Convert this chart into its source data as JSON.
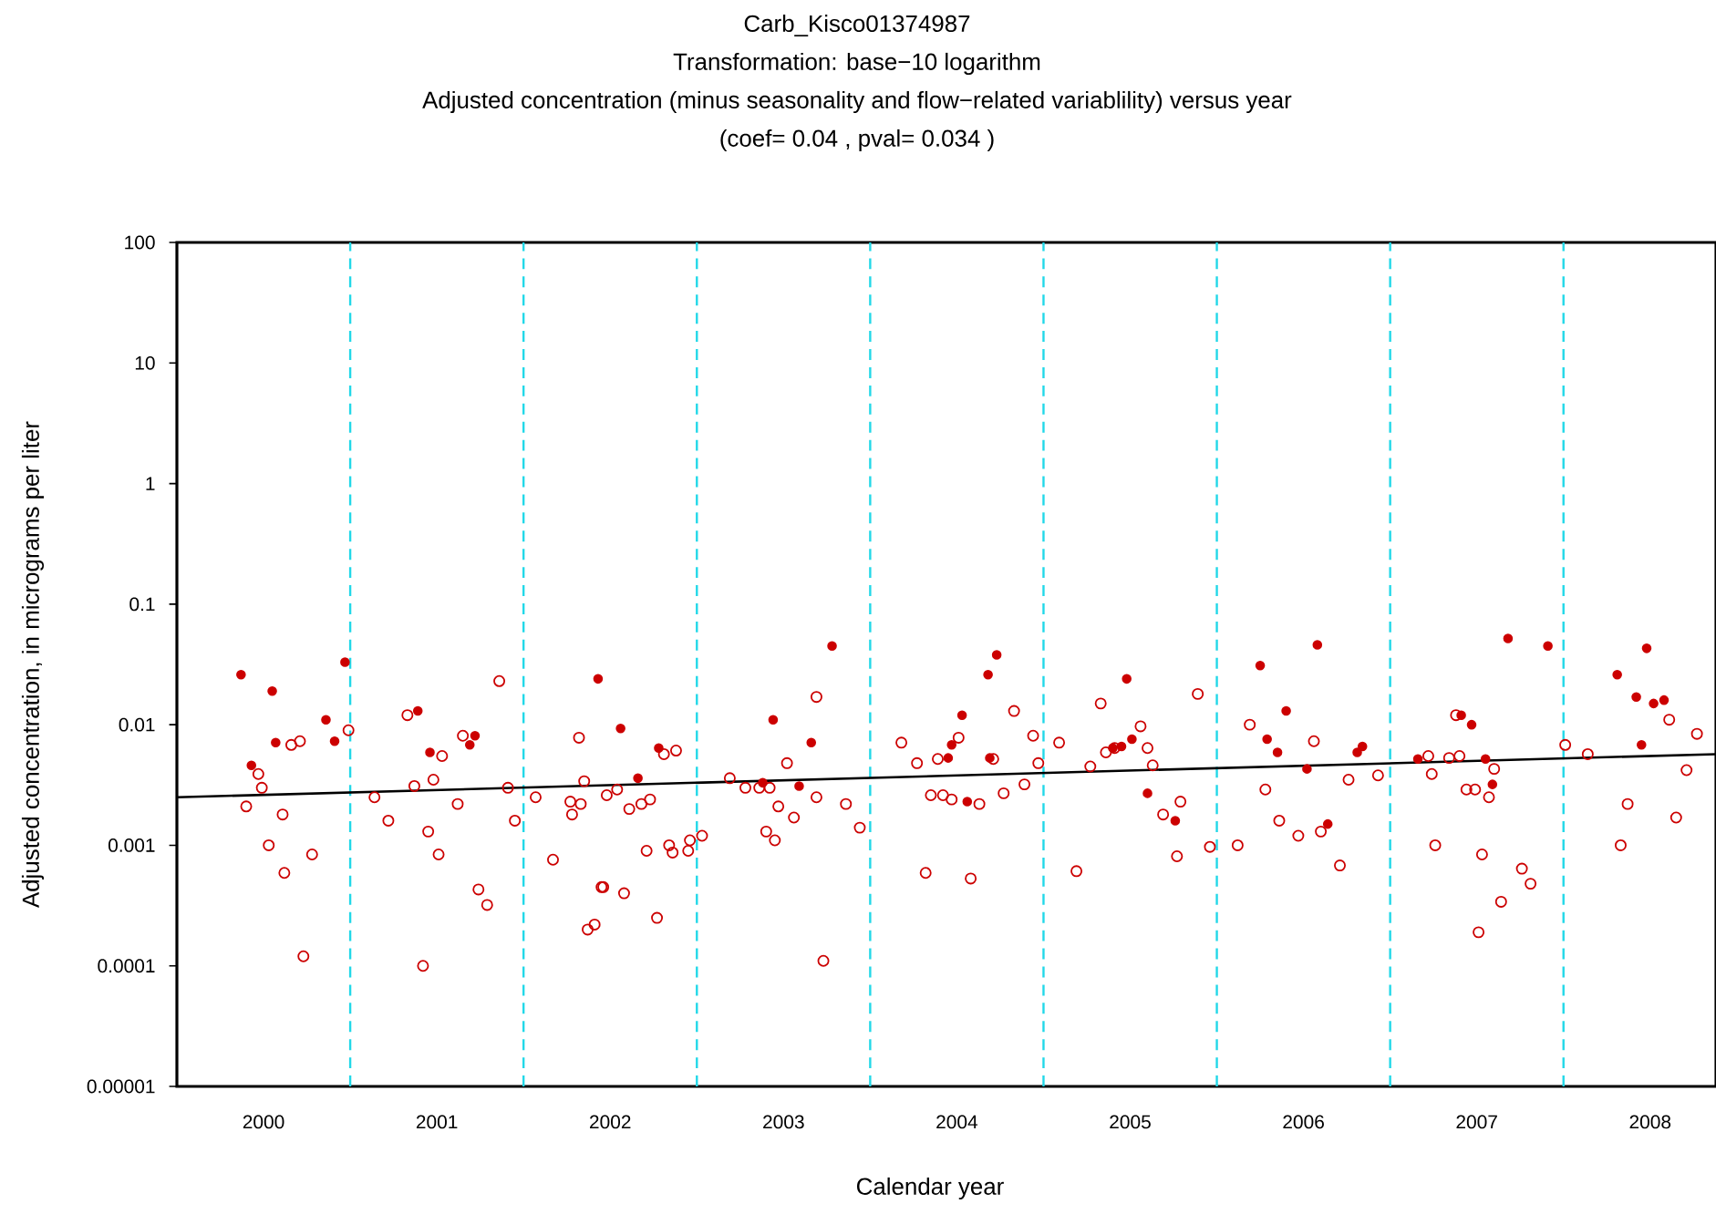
{
  "chart_data": {
    "type": "scatter",
    "title": "Carb_Kisco01374987",
    "subtitle": "Transformation: base−10 logarithm",
    "annotations": [
      "Adjusted concentration (minus seasonality and flow−related variablility) versus year",
      "(coef= 0.04 , pval= 0.034 )"
    ],
    "xlabel": "Calendar year",
    "ylabel": "Adjusted concentration, in micrograms per liter",
    "log": "y",
    "grid": false,
    "xlim": [
      2000,
      2008.88
    ],
    "ylim": [
      1e-05,
      100
    ],
    "xticks": [
      {
        "value": 2000.5,
        "label": "2000"
      },
      {
        "value": 2001.5,
        "label": "2001"
      },
      {
        "value": 2002.5,
        "label": "2002"
      },
      {
        "value": 2003.5,
        "label": "2003"
      },
      {
        "value": 2004.5,
        "label": "2004"
      },
      {
        "value": 2005.5,
        "label": "2005"
      },
      {
        "value": 2006.5,
        "label": "2006"
      },
      {
        "value": 2007.5,
        "label": "2007"
      },
      {
        "value": 2008.5,
        "label": "2008"
      }
    ],
    "yticks": [
      {
        "value": 1e-05,
        "label": "0.00001"
      },
      {
        "value": 0.0001,
        "label": "0.0001"
      },
      {
        "value": 0.001,
        "label": "0.001"
      },
      {
        "value": 0.01,
        "label": "0.01"
      },
      {
        "value": 0.1,
        "label": "0.1"
      },
      {
        "value": 1,
        "label": "1"
      },
      {
        "value": 10,
        "label": "10"
      },
      {
        "value": 100,
        "label": "100"
      }
    ],
    "ref_lines": [
      {
        "axis": "x",
        "value": 2001,
        "color": "#22d8e8",
        "line_style": "dashed"
      },
      {
        "axis": "x",
        "value": 2002,
        "color": "#22d8e8",
        "line_style": "dashed"
      },
      {
        "axis": "x",
        "value": 2003,
        "color": "#22d8e8",
        "line_style": "dashed"
      },
      {
        "axis": "x",
        "value": 2004,
        "color": "#22d8e8",
        "line_style": "dashed"
      },
      {
        "axis": "x",
        "value": 2005,
        "color": "#22d8e8",
        "line_style": "dashed"
      },
      {
        "axis": "x",
        "value": 2006,
        "color": "#22d8e8",
        "line_style": "dashed"
      },
      {
        "axis": "x",
        "value": 2007,
        "color": "#22d8e8",
        "line_style": "dashed"
      },
      {
        "axis": "x",
        "value": 2008,
        "color": "#22d8e8",
        "line_style": "dashed"
      }
    ],
    "series": [
      {
        "color": "#cc0000",
        "marker": "circle",
        "x": [
          2000.37,
          2000.55,
          2000.57,
          2000.86,
          2000.91,
          2000.97,
          2000.43,
          2001.39,
          2001.46,
          2001.72,
          2001.69,
          2002.43,
          2002.56,
          2002.78,
          2002.66,
          2003.44,
          2003.38,
          2003.59,
          2003.78,
          2003.66,
          2004.68,
          2004.73,
          2004.53,
          2004.47,
          2004.45,
          2004.69,
          2004.56,
          2005.4,
          2005.48,
          2005.51,
          2005.45,
          2005.6,
          2005.76,
          2006.25,
          2006.4,
          2006.29,
          2006.35,
          2006.58,
          2006.52,
          2006.81,
          2006.84,
          2006.64,
          2007.16,
          2007.68,
          2007.91,
          2007.41,
          2007.47,
          2007.55,
          2007.59,
          2008.31,
          2008.48,
          2008.42,
          2008.52,
          2008.58,
          2008.45
        ],
        "values": [
          0.026,
          0.019,
          0.0071,
          0.011,
          0.0073,
          0.033,
          0.0046,
          0.013,
          0.0059,
          0.0081,
          0.0068,
          0.024,
          0.0093,
          0.0064,
          0.0036,
          0.011,
          0.0033,
          0.0031,
          0.045,
          0.0071,
          0.026,
          0.038,
          0.012,
          0.0068,
          0.0053,
          0.0053,
          0.0023,
          0.0064,
          0.024,
          0.0076,
          0.0066,
          0.0027,
          0.0016,
          0.031,
          0.013,
          0.0076,
          0.0059,
          0.046,
          0.0043,
          0.0059,
          0.0066,
          0.0015,
          0.0052,
          0.052,
          0.045,
          0.012,
          0.01,
          0.0052,
          0.0032,
          0.026,
          0.043,
          0.017,
          0.015,
          0.016,
          0.0068
        ]
      },
      {
        "color": "#cc0000",
        "marker": "circle",
        "x": [
          2000.47,
          2000.49,
          2000.4,
          2000.61,
          2000.53,
          2000.62,
          2000.78,
          2000.73,
          2000.66,
          2000.71,
          2000.99,
          2001.33,
          2001.37,
          2001.48,
          2001.53,
          2001.14,
          2001.22,
          2001.45,
          2001.51,
          2001.62,
          2001.65,
          2001.74,
          2001.79,
          2001.42,
          2001.86,
          2001.91,
          2001.95,
          2002.07,
          2002.17,
          2002.32,
          2002.35,
          2002.27,
          2002.33,
          2002.28,
          2002.48,
          2002.54,
          2002.61,
          2002.68,
          2002.73,
          2002.45,
          2002.46,
          2002.58,
          2002.37,
          2002.41,
          2002.71,
          2002.77,
          2002.81,
          2002.88,
          2002.84,
          2002.86,
          2002.95,
          2002.96,
          2003.03,
          2003.19,
          2003.28,
          2003.36,
          2003.42,
          2003.52,
          2003.47,
          2003.56,
          2003.4,
          2003.45,
          2003.69,
          2003.69,
          2003.86,
          2003.94,
          2003.73,
          2004.18,
          2004.27,
          2004.39,
          2004.51,
          2004.35,
          2004.42,
          2004.47,
          2004.63,
          2004.71,
          2004.77,
          2004.89,
          2004.83,
          2004.94,
          2004.97,
          2004.32,
          2004.58,
          2005.09,
          2005.19,
          2005.27,
          2005.33,
          2005.36,
          2005.41,
          2005.56,
          2005.6,
          2005.63,
          2005.69,
          2005.79,
          2005.77,
          2005.89,
          2005.96,
          2006.12,
          2006.19,
          2006.28,
          2006.36,
          2006.47,
          2006.56,
          2006.6,
          2006.71,
          2006.76,
          2006.93,
          2007.22,
          2007.34,
          2007.4,
          2007.24,
          2007.38,
          2007.44,
          2007.49,
          2007.57,
          2007.6,
          2007.26,
          2007.53,
          2007.76,
          2007.81,
          2007.64,
          2007.51,
          2008.01,
          2008.14,
          2008.37,
          2008.33,
          2008.61,
          2008.77,
          2008.71,
          2008.65
        ],
        "values": [
          0.0039,
          0.003,
          0.0021,
          0.0018,
          0.001,
          0.00059,
          0.00084,
          0.00012,
          0.0068,
          0.0073,
          0.009,
          0.012,
          0.0031,
          0.0035,
          0.0055,
          0.0025,
          0.0016,
          0.0013,
          0.00084,
          0.0022,
          0.0081,
          0.00043,
          0.00032,
          0.0001,
          0.023,
          0.003,
          0.0016,
          0.0025,
          0.00076,
          0.0078,
          0.0034,
          0.0023,
          0.0022,
          0.0018,
          0.0026,
          0.0029,
          0.002,
          0.0022,
          0.0024,
          0.00045,
          0.00045,
          0.0004,
          0.0002,
          0.00022,
          0.0009,
          0.00025,
          0.0057,
          0.0061,
          0.001,
          0.00087,
          0.0009,
          0.0011,
          0.0012,
          0.0036,
          0.003,
          0.003,
          0.003,
          0.0048,
          0.0021,
          0.0017,
          0.0013,
          0.0011,
          0.017,
          0.0025,
          0.0022,
          0.0014,
          0.00011,
          0.0071,
          0.0048,
          0.0052,
          0.0078,
          0.0026,
          0.0026,
          0.0024,
          0.0022,
          0.0052,
          0.0027,
          0.0032,
          0.013,
          0.0081,
          0.0048,
          0.00059,
          0.00053,
          0.0071,
          0.00061,
          0.0045,
          0.015,
          0.0059,
          0.0064,
          0.0097,
          0.0064,
          0.0046,
          0.0018,
          0.0023,
          0.00081,
          0.018,
          0.00097,
          0.001,
          0.01,
          0.0029,
          0.0016,
          0.0012,
          0.0073,
          0.0013,
          0.00068,
          0.0035,
          0.0038,
          0.0055,
          0.0053,
          0.0055,
          0.0039,
          0.012,
          0.0029,
          0.0029,
          0.0025,
          0.0043,
          0.001,
          0.00084,
          0.00064,
          0.00048,
          0.00034,
          0.00019,
          0.0068,
          0.0057,
          0.0022,
          0.001,
          0.011,
          0.0084,
          0.0042,
          0.0017
        ]
      },
      {
        "type": "line",
        "color": "#000000",
        "marker": "none",
        "x": [
          2000,
          2008.88
        ],
        "values": [
          0.0025,
          0.0057
        ]
      }
    ]
  }
}
